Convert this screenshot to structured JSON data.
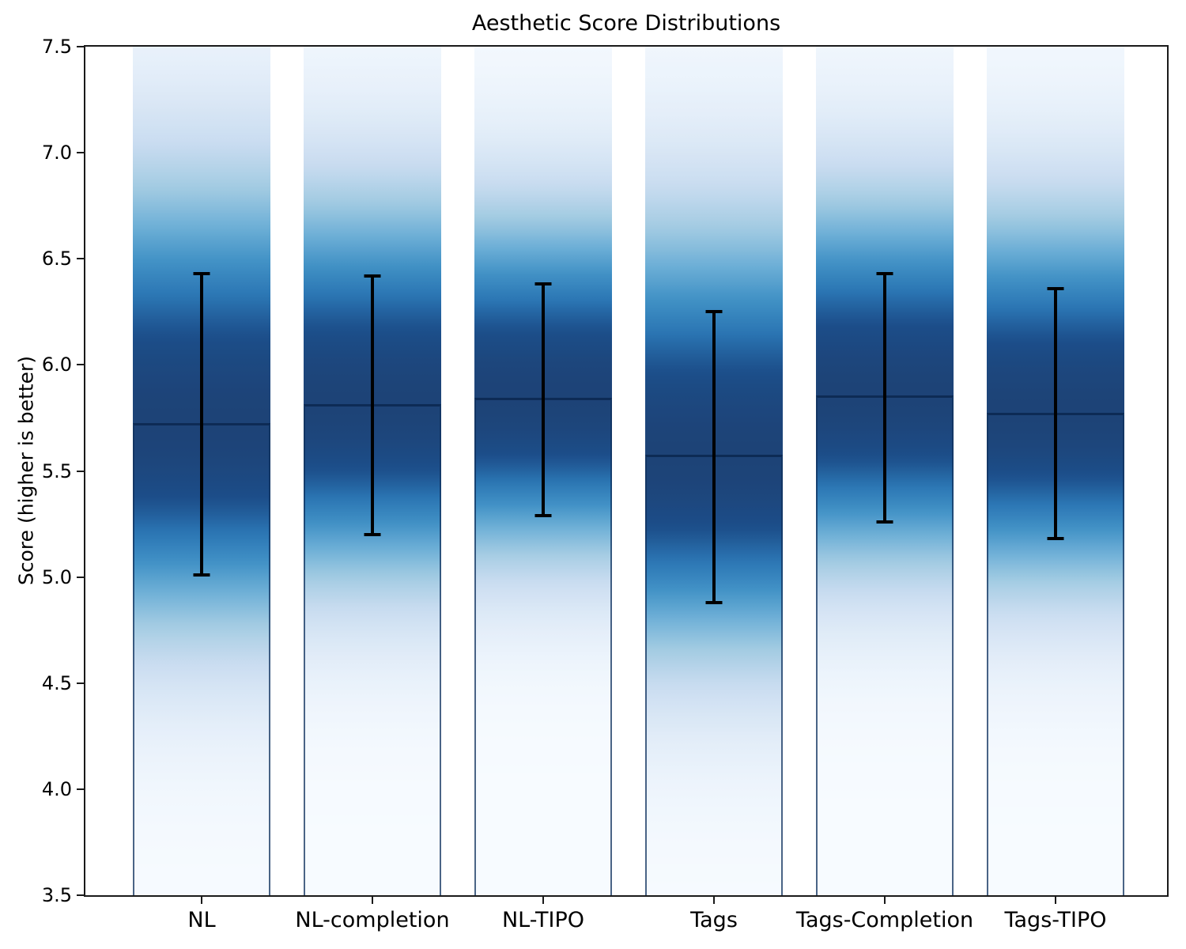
{
  "figure": {
    "title": "Aesthetic Score Distributions"
  },
  "axes": {
    "y_label": "Score (higher is better)",
    "y_min": 3.5,
    "y_max": 7.5,
    "y_ticks": [
      "3.5",
      "4.0",
      "4.5",
      "5.0",
      "5.5",
      "6.0",
      "6.5",
      "7.0",
      "7.5"
    ]
  },
  "chart_data": {
    "type": "bar",
    "title": "Aesthetic Score Distributions",
    "xlabel": "",
    "ylabel": "Score (higher is better)",
    "ylim": [
      3.5,
      7.5
    ],
    "grid": false,
    "legend": false,
    "categories": [
      "NL",
      "NL-completion",
      "NL-TIPO",
      "Tags",
      "Tags-Completion",
      "Tags-TIPO"
    ],
    "series": [
      {
        "name": "mean",
        "values": [
          5.72,
          5.81,
          5.84,
          5.57,
          5.85,
          5.77
        ]
      },
      {
        "name": "std",
        "values": [
          0.71,
          0.61,
          0.55,
          0.68,
          0.58,
          0.59
        ]
      }
    ],
    "error_bar_high": [
      6.43,
      6.42,
      6.38,
      6.25,
      6.43,
      6.36
    ],
    "error_bar_low": [
      5.01,
      5.2,
      5.29,
      4.88,
      5.26,
      5.18
    ],
    "bar_style": "vertical gradient, darkest at the mean, fading to white at both ends (Blues colormap of gaussian density)",
    "style": {
      "bar_color_peak": "#1d4377",
      "bar_color_light": "#f7fbff",
      "mean_line_color": "#0d2b55",
      "bar_edge_color": "#10325e",
      "error_bar_color": "#000000",
      "axis_color": "#1a1a1a",
      "background": "#ffffff"
    }
  }
}
